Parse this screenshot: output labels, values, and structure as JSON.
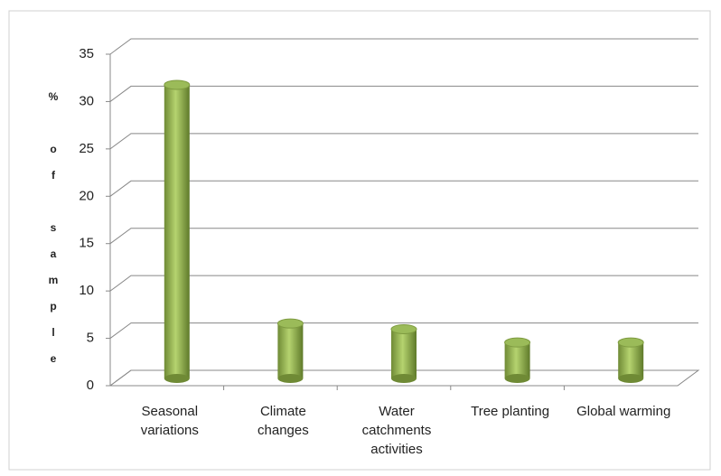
{
  "chart_data": {
    "type": "bar",
    "y_label": "% of sample",
    "categories": [
      "Seasonal variations",
      "Climate changes",
      "Water catchments activities",
      "Tree planting",
      "Global warming"
    ],
    "values": [
      31,
      5.8,
      5.2,
      3.8,
      3.8
    ],
    "color": "#9bbb59",
    "ylim": [
      0,
      35
    ],
    "yticks": [
      0,
      5,
      10,
      15,
      20,
      25,
      30,
      35
    ],
    "grid": true
  }
}
